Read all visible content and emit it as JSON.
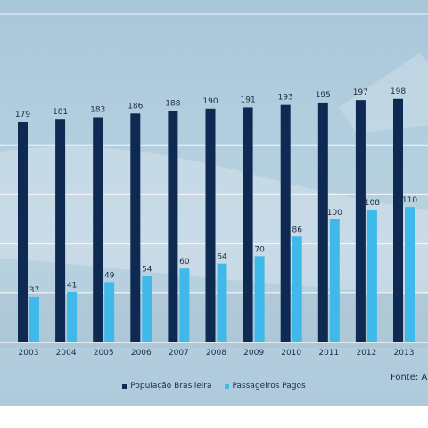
{
  "colors": {
    "pop": "#0e2a52",
    "pass": "#3fb8ea",
    "grid": "#ffffff",
    "text": "#1c2a44"
  },
  "source_note": "Fonte: A",
  "chart_data": {
    "type": "bar",
    "categories": [
      "2003",
      "2004",
      "2005",
      "2006",
      "2007",
      "2008",
      "2009",
      "2010",
      "2011",
      "2012",
      "2013"
    ],
    "series": [
      {
        "name": "População Brasileira",
        "values": [
          179,
          181,
          183,
          186,
          188,
          190,
          191,
          193,
          195,
          197,
          198
        ]
      },
      {
        "name": "Passageiros Pagos",
        "values": [
          37,
          41,
          49,
          54,
          60,
          64,
          70,
          86,
          100,
          108,
          110
        ]
      }
    ],
    "ylim": [
      0,
      200
    ],
    "grid": true,
    "legend": "bottom"
  }
}
